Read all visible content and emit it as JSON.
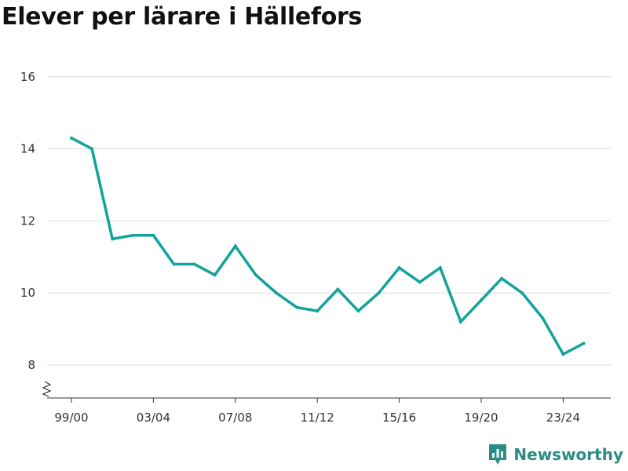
{
  "chart_data": {
    "type": "line",
    "title": "Elever per lärare i Hällefors",
    "xlabel": "",
    "ylabel": "",
    "x": [
      "99/00",
      "00/01",
      "01/02",
      "02/03",
      "03/04",
      "04/05",
      "05/06",
      "06/07",
      "07/08",
      "08/09",
      "09/10",
      "10/11",
      "11/12",
      "12/13",
      "13/14",
      "14/15",
      "15/16",
      "16/17",
      "17/18",
      "18/19",
      "19/20",
      "20/21",
      "21/22",
      "22/23",
      "23/24",
      "24/25"
    ],
    "series": [
      {
        "values": [
          14.3,
          14.0,
          11.5,
          11.6,
          11.6,
          10.8,
          10.8,
          10.5,
          11.3,
          10.5,
          10.0,
          9.6,
          9.5,
          10.1,
          9.5,
          10.0,
          10.7,
          10.3,
          10.7,
          9.2,
          9.8,
          10.4,
          10.0,
          9.3,
          8.3,
          8.6
        ]
      }
    ],
    "x_tick_labels": [
      "99/00",
      "03/04",
      "07/08",
      "11/12",
      "15/16",
      "19/20",
      "23/24"
    ],
    "y_ticks": [
      8,
      10,
      12,
      14,
      16
    ],
    "ylim": [
      7.0,
      16.4
    ],
    "grid": true,
    "colors": {
      "line": "#12a39b",
      "grid": "#dddddd",
      "axis": "#333333"
    }
  },
  "brand": {
    "name": "Newsworthy",
    "color": "#2a8c84",
    "icon": "newsworthy-logo-icon"
  }
}
